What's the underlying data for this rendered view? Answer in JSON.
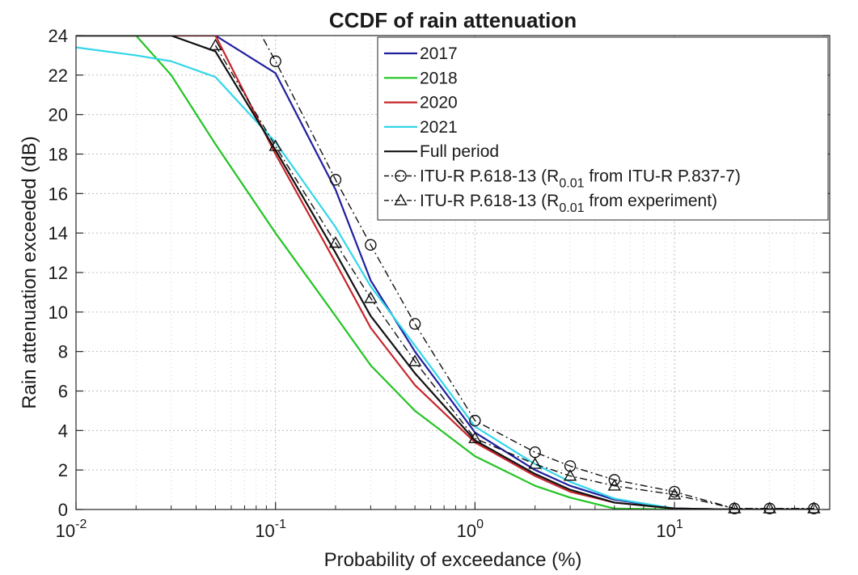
{
  "chart_data": {
    "type": "line",
    "title": "CCDF of rain attenuation",
    "xlabel": "Probability of exceedance (%)",
    "ylabel": "Rain attenuation exceeded (dB)",
    "xscale": "log",
    "xlim": [
      0.01,
      60
    ],
    "ylim": [
      0,
      24
    ],
    "x_ticks": [
      {
        "value": 0.01,
        "base": "10",
        "exp": "-2"
      },
      {
        "value": 0.1,
        "base": "10",
        "exp": "-1"
      },
      {
        "value": 1,
        "base": "10",
        "exp": "0"
      },
      {
        "value": 10,
        "base": "10",
        "exp": "1"
      }
    ],
    "y_ticks": [
      "0",
      "2",
      "4",
      "6",
      "8",
      "10",
      "12",
      "14",
      "16",
      "18",
      "20",
      "22",
      "24"
    ],
    "grid": true,
    "legend_position": "top-right",
    "series": [
      {
        "name": "2017",
        "color": "#1f1fa0",
        "dash": "solid",
        "marker": "none",
        "x": [
          0.01,
          0.05,
          0.1,
          0.2,
          0.3,
          0.5,
          1,
          2,
          3,
          5,
          10,
          20,
          30,
          50
        ],
        "y": [
          24,
          24,
          22.1,
          16.2,
          11.6,
          8,
          3.9,
          2,
          1.2,
          0.5,
          0.05,
          0,
          0,
          0
        ]
      },
      {
        "name": "2018",
        "color": "#22c422",
        "dash": "solid",
        "marker": "none",
        "x": [
          0.01,
          0.02,
          0.03,
          0.05,
          0.1,
          0.2,
          0.3,
          0.5,
          1,
          2,
          3,
          5,
          10,
          20,
          30,
          50
        ],
        "y": [
          24,
          24,
          22,
          18.5,
          14,
          9.8,
          7.3,
          5,
          2.7,
          1.2,
          0.6,
          0.05,
          0,
          0,
          0,
          0
        ]
      },
      {
        "name": "2020",
        "color": "#c8252a",
        "dash": "solid",
        "marker": "none",
        "x": [
          0.01,
          0.05,
          0.1,
          0.2,
          0.3,
          0.5,
          1,
          2,
          3,
          5,
          10,
          20,
          30,
          50
        ],
        "y": [
          24,
          24,
          18,
          12.5,
          9.2,
          6.3,
          3.4,
          1.7,
          0.9,
          0.35,
          0.05,
          0,
          0,
          0
        ]
      },
      {
        "name": "2021",
        "color": "#33d6e8",
        "dash": "solid",
        "marker": "none",
        "x": [
          0.01,
          0.02,
          0.03,
          0.05,
          0.1,
          0.2,
          0.3,
          0.5,
          1,
          2,
          3,
          5,
          10,
          20,
          30,
          50
        ],
        "y": [
          23.4,
          23,
          22.7,
          21.9,
          18.6,
          14.3,
          11.3,
          8.3,
          4.2,
          2.3,
          1.4,
          0.55,
          0.05,
          0,
          0,
          0
        ]
      },
      {
        "name": "Full period",
        "color": "#111111",
        "dash": "solid",
        "marker": "none",
        "x": [
          0.01,
          0.03,
          0.05,
          0.1,
          0.2,
          0.3,
          0.5,
          1,
          2,
          3,
          5,
          10,
          20,
          30,
          50
        ],
        "y": [
          24,
          24,
          23.2,
          18.2,
          13,
          9.8,
          6.9,
          3.5,
          1.8,
          1,
          0.35,
          0.05,
          0,
          0,
          0
        ]
      },
      {
        "name": "ITU-R P.618-13 (R",
        "sub": "0.01",
        "name_suffix": " from ITU-R P.837-7)",
        "color": "#111111",
        "dash": "dashdot",
        "marker": "circle",
        "x": [
          0.08,
          0.1,
          0.2,
          0.3,
          0.5,
          1,
          2,
          3,
          5,
          10,
          20,
          30,
          50
        ],
        "y": [
          24.5,
          22.7,
          16.7,
          13.4,
          9.4,
          4.5,
          2.9,
          2.2,
          1.5,
          0.9,
          0.05,
          0.05,
          0.05
        ],
        "marker_x": [
          0.1,
          0.2,
          0.3,
          0.5,
          1,
          2,
          3,
          5,
          10,
          20,
          30,
          50
        ]
      },
      {
        "name": "ITU-R P.618-13 (R",
        "sub": "0.01",
        "name_suffix": " from experiment)",
        "color": "#111111",
        "dash": "dashdot",
        "marker": "triangle",
        "x": [
          0.05,
          0.1,
          0.2,
          0.3,
          0.5,
          1,
          2,
          3,
          5,
          10,
          20,
          30,
          50
        ],
        "y": [
          23.5,
          18.4,
          13.5,
          10.7,
          7.5,
          3.6,
          2.3,
          1.7,
          1.2,
          0.75,
          0.05,
          0.05,
          0.05
        ],
        "marker_x": [
          0.05,
          0.1,
          0.2,
          0.3,
          0.5,
          1,
          2,
          3,
          5,
          10,
          20,
          30,
          50
        ]
      }
    ]
  }
}
